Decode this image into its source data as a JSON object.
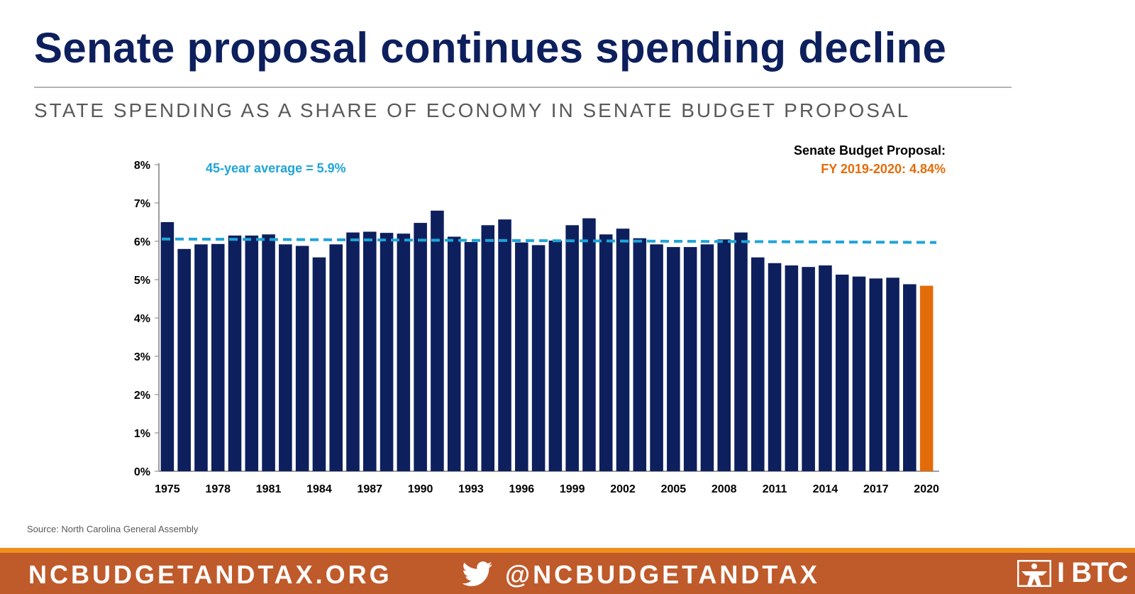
{
  "title": "Senate proposal continues spending decline",
  "subtitle": "STATE SPENDING AS A SHARE OF ECONOMY IN SENATE BUDGET PROPOSAL",
  "source": "Source: North Carolina General Assembly",
  "footer": {
    "website": "NCBUDGETANDTAX.ORG",
    "twitter_icon": "twitter-bird-icon",
    "handle": "@NCBUDGETANDTAX",
    "logo_icon": "btc-logo-mark-icon",
    "logo_text": "I BTC"
  },
  "colors": {
    "title": "#0d1f5c",
    "bar": "#0d1f5c",
    "highlight": "#e36c0a",
    "average": "#1fa4d8",
    "footer": "#bf5a2b",
    "footer_accent": "#f28f1c"
  },
  "chart_data": {
    "type": "bar",
    "categories": [
      "1975",
      "1976",
      "1977",
      "1978",
      "1979",
      "1980",
      "1981",
      "1982",
      "1983",
      "1984",
      "1985",
      "1986",
      "1987",
      "1988",
      "1989",
      "1990",
      "1991",
      "1992",
      "1993",
      "1994",
      "1995",
      "1996",
      "1997",
      "1998",
      "1999",
      "2000",
      "2001",
      "2002",
      "2003",
      "2004",
      "2005",
      "2006",
      "2007",
      "2008",
      "2009",
      "2010",
      "2011",
      "2012",
      "2013",
      "2014",
      "2015",
      "2016",
      "2017",
      "2018",
      "2019",
      "2020"
    ],
    "tick_labels": [
      "1975",
      "1978",
      "1981",
      "1984",
      "1987",
      "1990",
      "1993",
      "1996",
      "1999",
      "2002",
      "2005",
      "2008",
      "2011",
      "2014",
      "2017",
      "2020"
    ],
    "values": [
      6.5,
      5.8,
      5.92,
      5.93,
      6.15,
      6.15,
      6.18,
      5.92,
      5.88,
      5.58,
      5.92,
      6.23,
      6.25,
      6.22,
      6.2,
      6.48,
      6.8,
      6.12,
      5.98,
      6.42,
      6.57,
      5.97,
      5.9,
      6.02,
      6.42,
      6.6,
      6.18,
      6.33,
      6.08,
      5.92,
      5.85,
      5.85,
      5.92,
      6.05,
      6.23,
      5.58,
      5.43,
      5.37,
      5.33,
      5.37,
      5.13,
      5.08,
      5.03,
      5.05,
      4.88,
      4.84
    ],
    "highlight_index": 45,
    "average": 5.9,
    "average_line": {
      "start": 6.06,
      "end": 5.97
    },
    "ylim": [
      0,
      8
    ],
    "y_ticks": [
      "0%",
      "1%",
      "2%",
      "3%",
      "4%",
      "5%",
      "6%",
      "7%",
      "8%"
    ],
    "average_label": "45-year average = 5.9%",
    "proposal_label_title": "Senate Budget Proposal:",
    "proposal_label_value": "FY 2019-2020: 4.84%",
    "grid": false
  }
}
